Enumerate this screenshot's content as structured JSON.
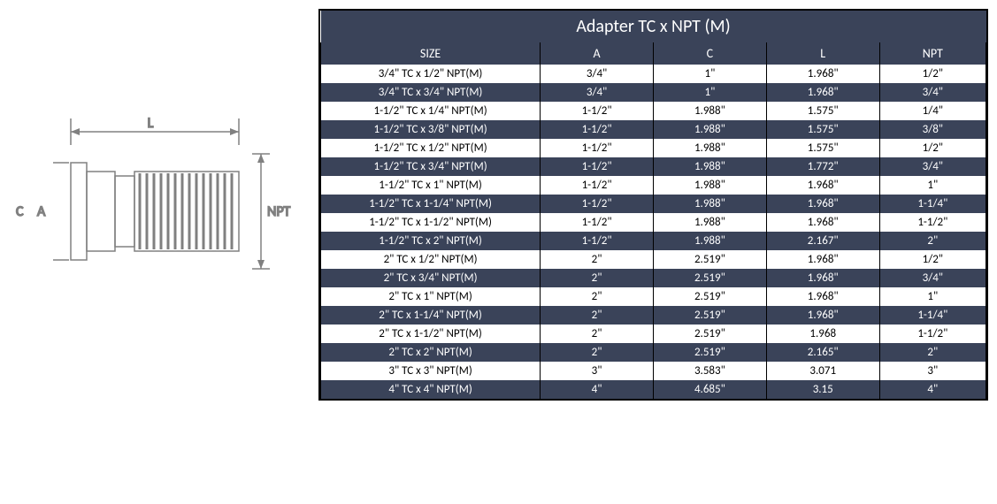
{
  "diagram": {
    "label_L": "L",
    "label_C": "C",
    "label_A": "A",
    "label_NPT": "NPT",
    "stroke": "#808080",
    "thread_fill": "#808080"
  },
  "table": {
    "title": "Adapter TC x NPT (M)",
    "title_bg": "#3a4359",
    "title_color": "#ffffff",
    "title_fontsize": 20,
    "header_bg": "#3a4359",
    "header_color": "#ffffff",
    "row_dark_bg": "#3a4359",
    "row_dark_color": "#ffffff",
    "row_light_bg": "#ffffff",
    "row_light_color": "#000000",
    "border_color": "#000000",
    "columns": [
      "SIZE",
      "A",
      "C",
      "L",
      "NPT"
    ],
    "rows": [
      [
        "3/4\" TC x 1/2\" NPT(M)",
        "3/4\"",
        "1\"",
        "1.968\"",
        "1/2\""
      ],
      [
        "3/4\" TC x 3/4\" NPT(M)",
        "3/4\"",
        "1\"",
        "1.968\"",
        "3/4\""
      ],
      [
        "1-1/2\" TC x 1/4\" NPT(M)",
        "1-1/2\"",
        "1.988\"",
        "1.575\"",
        "1/4\""
      ],
      [
        "1-1/2\" TC x 3/8\" NPT(M)",
        "1-1/2\"",
        "1.988\"",
        "1.575\"",
        "3/8\""
      ],
      [
        "1-1/2\" TC x 1/2\" NPT(M)",
        "1-1/2\"",
        "1.988\"",
        "1.575\"",
        "1/2\""
      ],
      [
        "1-1/2\" TC x 3/4\" NPT(M)",
        "1-1/2\"",
        "1.988\"",
        "1.772\"",
        "3/4\""
      ],
      [
        "1-1/2\" TC x 1\" NPT(M)",
        "1-1/2\"",
        "1.988\"",
        "1.968\"",
        "1\""
      ],
      [
        "1-1/2\" TC x 1-1/4\" NPT(M)",
        "1-1/2\"",
        "1.988\"",
        "1.968\"",
        "1-1/4\""
      ],
      [
        "1-1/2\" TC x 1-1/2\" NPT(M)",
        "1-1/2\"",
        "1.988\"",
        "1.968\"",
        "1-1/2\""
      ],
      [
        "1-1/2\" TC x 2\" NPT(M)",
        "1-1/2\"",
        "1.988\"",
        "2.167\"",
        "2\""
      ],
      [
        "2\" TC x 1/2\" NPT(M)",
        "2\"",
        "2.519\"",
        "1.968\"",
        "1/2\""
      ],
      [
        "2\" TC x 3/4\" NPT(M)",
        "2\"",
        "2.519\"",
        "1.968\"",
        "3/4\""
      ],
      [
        "2\" TC x 1\" NPT(M)",
        "2\"",
        "2.519\"",
        "1.968\"",
        "1\""
      ],
      [
        "2\" TC x 1-1/4\" NPT(M)",
        "2\"",
        "2.519\"",
        "1.968\"",
        "1-1/4\""
      ],
      [
        "2\" TC x 1-1/2\" NPT(M)",
        "2\"",
        "2.519\"",
        "1.968",
        "1-1/2\""
      ],
      [
        "2\" TC x 2\" NPT(M)",
        "2\"",
        "2.519\"",
        "2.165\"",
        "2\""
      ],
      [
        "3\" TC x 3\" NPT(M)",
        "3\"",
        "3.583\"",
        "3.071",
        "3\""
      ],
      [
        "4\" TC x 4\" NPT(M)",
        "4\"",
        "4.685\"",
        "3.15",
        "4\""
      ]
    ]
  }
}
